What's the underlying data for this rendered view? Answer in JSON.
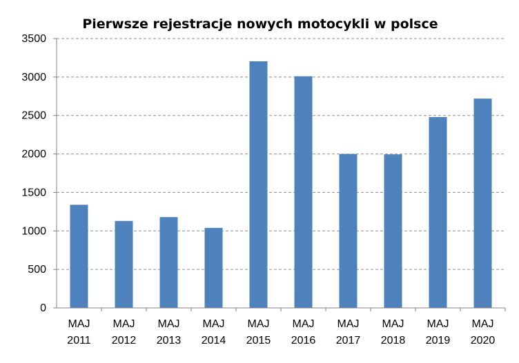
{
  "chart_data": {
    "type": "bar",
    "title": "Pierwsze rejestracje nowych motocykli w polsce",
    "xlabel": "",
    "ylabel": "",
    "categories": [
      [
        "MAJ",
        "2011"
      ],
      [
        "MAJ",
        "2012"
      ],
      [
        "MAJ",
        "2013"
      ],
      [
        "MAJ",
        "2014"
      ],
      [
        "MAJ",
        "2015"
      ],
      [
        "MAJ",
        "2016"
      ],
      [
        "MAJ",
        "2017"
      ],
      [
        "MAJ",
        "2018"
      ],
      [
        "MAJ",
        "2019"
      ],
      [
        "MAJ",
        "2020"
      ]
    ],
    "values": [
      1340,
      1130,
      1180,
      1040,
      3205,
      3010,
      2000,
      1995,
      2480,
      2720
    ],
    "ylim": [
      0,
      3500
    ],
    "yticks": [
      "0",
      "500",
      "1000",
      "1500",
      "2000",
      "2500",
      "3000",
      "3500"
    ],
    "grid": true,
    "legend": "none",
    "bar_color": "#4f81bd"
  }
}
